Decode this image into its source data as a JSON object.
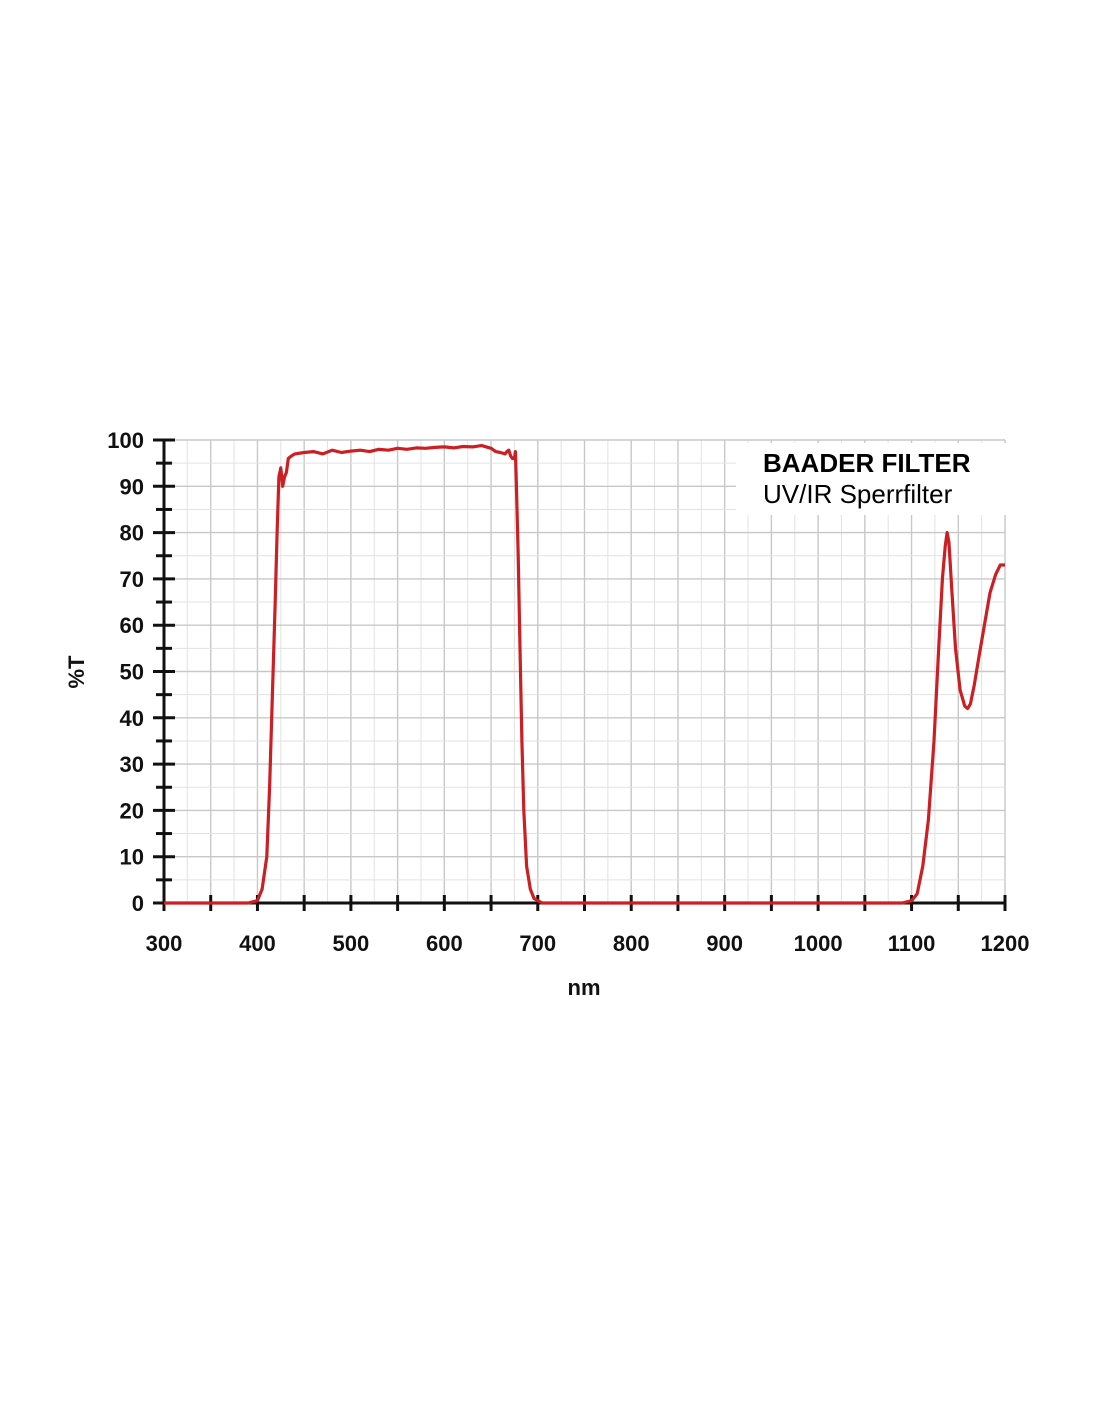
{
  "legend": {
    "title": "BAADER FILTER",
    "subtitle": "UV/IR Sperrfilter"
  },
  "colors": {
    "curve": "#cc1f24",
    "grid_major": "#c8c8c8",
    "grid_minor": "#e2e2e2",
    "axis": "#111111"
  },
  "chart_data": {
    "type": "line",
    "title": "",
    "xlabel": "nm",
    "ylabel": "%T",
    "xlim": [
      300,
      1200
    ],
    "ylim": [
      0,
      100
    ],
    "x_ticks": [
      300,
      400,
      500,
      600,
      700,
      800,
      900,
      1000,
      1100,
      1200
    ],
    "y_ticks": [
      0,
      10,
      20,
      30,
      40,
      50,
      60,
      70,
      80,
      90,
      100
    ],
    "grid": true,
    "legend_position": "top-right",
    "series": [
      {
        "x": [
          300,
          390,
          400,
          405,
          410,
          413,
          416,
          419,
          421,
          423,
          425,
          427,
          429,
          431,
          433,
          436,
          440,
          450,
          460,
          470,
          480,
          490,
          500,
          510,
          520,
          530,
          540,
          550,
          560,
          570,
          580,
          590,
          600,
          610,
          620,
          630,
          640,
          650,
          655,
          660,
          665,
          667,
          669,
          671,
          673,
          675,
          676,
          677,
          679,
          681,
          683,
          685,
          688,
          692,
          696,
          700,
          705,
          720,
          800,
          900,
          1000,
          1090,
          1100,
          1106,
          1112,
          1118,
          1124,
          1129,
          1133,
          1136,
          1138,
          1140,
          1143,
          1147,
          1152,
          1157,
          1160,
          1163,
          1167,
          1172,
          1178,
          1184,
          1190,
          1195,
          1200
        ],
        "y": [
          0,
          0,
          0.5,
          3,
          10,
          25,
          45,
          65,
          80,
          92,
          94,
          90,
          92,
          93,
          96,
          96.5,
          97,
          97.3,
          97.5,
          97,
          97.8,
          97.3,
          97.6,
          97.8,
          97.5,
          98,
          97.8,
          98.2,
          98,
          98.3,
          98.2,
          98.4,
          98.5,
          98.3,
          98.6,
          98.5,
          98.8,
          98.2,
          97.5,
          97.3,
          97,
          97.5,
          97.8,
          96.5,
          96,
          96,
          97.5,
          91,
          75,
          55,
          35,
          20,
          8,
          3,
          1,
          0.5,
          0,
          0,
          0,
          0,
          0,
          0,
          0.5,
          2,
          8,
          18,
          35,
          55,
          70,
          77,
          80,
          78,
          68,
          55,
          46,
          42.5,
          42,
          43,
          47,
          53,
          60,
          67,
          71,
          73,
          73
        ]
      }
    ]
  }
}
